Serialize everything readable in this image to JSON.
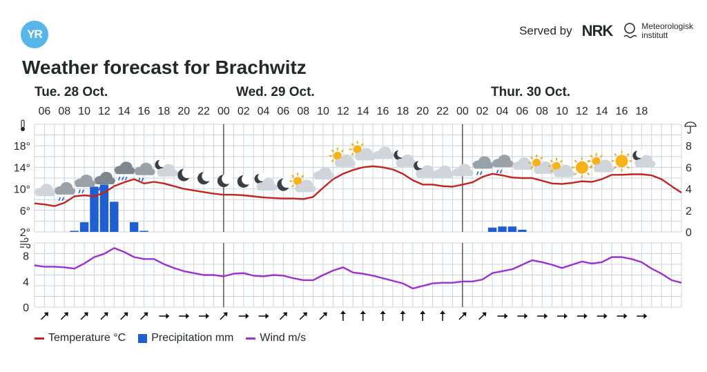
{
  "brand": {
    "logo_text": "YR",
    "served_by": "Served by",
    "nrk": "NRK",
    "met_line1": "Meteorologisk",
    "met_line2": "institutt"
  },
  "title": "Weather forecast for Brachwitz",
  "days": [
    "Tue. 28 Oct.",
    "Wed. 29 Oct.",
    "Thur. 30 Oct."
  ],
  "legend": {
    "temperature": "Temperature °C",
    "precipitation": "Precipitation mm",
    "wind": "Wind m/s"
  },
  "colors": {
    "temperature": "#c4221d",
    "precipitation": "#1f5fd1",
    "wind": "#9b30d0",
    "grid": "#c7d3db",
    "day_divider": "#333333"
  },
  "chart_data": [
    {
      "type": "line",
      "title": "Weather forecast for Brachwitz",
      "x_hours": [
        5,
        6,
        7,
        8,
        9,
        10,
        11,
        12,
        13,
        14,
        15,
        16,
        17,
        18,
        19,
        20,
        21,
        22,
        23,
        24,
        25,
        26,
        27,
        28,
        29,
        30,
        31,
        32,
        33,
        34,
        35,
        36,
        37,
        38,
        39,
        40,
        41,
        42,
        43,
        44,
        45,
        46,
        47,
        48,
        49,
        50,
        51,
        52,
        53,
        54,
        55,
        56,
        57,
        58,
        59,
        60,
        61,
        62,
        63,
        64,
        65,
        66,
        67,
        68,
        69,
        70
      ],
      "x_tick_labels": [
        "06",
        "08",
        "10",
        "12",
        "14",
        "16",
        "18",
        "20",
        "22",
        "00",
        "02",
        "04",
        "06",
        "08",
        "10",
        "12",
        "14",
        "16",
        "18",
        "20",
        "22",
        "00",
        "02",
        "04",
        "06",
        "08",
        "10",
        "12",
        "14",
        "16",
        "18"
      ],
      "y_left_ticks": [
        "2°",
        "6°",
        "10°",
        "14°",
        "18°"
      ],
      "y_right_ticks": [
        "0",
        "2",
        "4",
        "6",
        "8"
      ],
      "ylim_left": [
        2,
        22
      ],
      "ylim_right": [
        0,
        10
      ],
      "series": [
        {
          "name": "Temperature °C",
          "axis": "left",
          "values": [
            7.3,
            7.1,
            6.8,
            7.4,
            8.6,
            8.8,
            8.6,
            9.3,
            10.5,
            11.2,
            11.8,
            11.0,
            11.3,
            11.0,
            10.5,
            10.0,
            9.7,
            9.4,
            9.1,
            8.9,
            8.9,
            8.8,
            8.6,
            8.4,
            8.3,
            8.2,
            8.2,
            8.1,
            8.5,
            10.2,
            11.8,
            12.8,
            13.5,
            14.0,
            14.2,
            14.0,
            13.6,
            12.8,
            11.6,
            10.8,
            10.8,
            10.5,
            10.4,
            10.8,
            11.2,
            12.2,
            12.8,
            12.5,
            12.1,
            12.0,
            12.0,
            11.5,
            11.0,
            10.9,
            11.1,
            11.4,
            11.3,
            11.8,
            12.6,
            12.6,
            12.7,
            12.7,
            12.5,
            11.8,
            10.5,
            9.3
          ]
        },
        {
          "name": "Precipitation mm",
          "axis": "right",
          "type": "bar",
          "bars": [
            {
              "hour": 9,
              "value": 0.1
            },
            {
              "hour": 10,
              "value": 0.9
            },
            {
              "hour": 11,
              "value": 4.2
            },
            {
              "hour": 12,
              "value": 4.4
            },
            {
              "hour": 13,
              "value": 2.8
            },
            {
              "hour": 15,
              "value": 0.9
            },
            {
              "hour": 16,
              "value": 0.1
            },
            {
              "hour": 51,
              "value": 0.4
            },
            {
              "hour": 52,
              "value": 0.5
            },
            {
              "hour": 53,
              "value": 0.5
            },
            {
              "hour": 54,
              "value": 0.2
            }
          ]
        }
      ]
    },
    {
      "type": "line",
      "y_ticks": [
        "0",
        "4",
        "8"
      ],
      "ylim": [
        0,
        10
      ],
      "series": [
        {
          "name": "Wind m/s",
          "values": [
            6.5,
            6.3,
            6.3,
            6.2,
            6.0,
            6.8,
            7.8,
            8.3,
            9.2,
            8.6,
            7.8,
            7.5,
            7.5,
            6.7,
            6.1,
            5.6,
            5.3,
            5.0,
            5.0,
            4.8,
            5.2,
            5.3,
            4.9,
            4.8,
            5.0,
            4.9,
            4.5,
            4.2,
            4.2,
            5.0,
            5.7,
            6.2,
            5.4,
            5.2,
            4.9,
            4.5,
            4.1,
            3.7,
            2.9,
            3.3,
            3.7,
            3.8,
            3.8,
            4.0,
            4.0,
            4.3,
            5.3,
            5.6,
            5.9,
            6.6,
            7.3,
            7.0,
            6.6,
            6.1,
            6.6,
            7.1,
            6.8,
            7.0,
            7.8,
            7.8,
            7.5,
            7.0,
            6.0,
            5.2,
            4.2,
            3.8
          ]
        }
      ]
    }
  ],
  "weather_icons": [
    "cloud",
    "cloud-rain",
    "cloud-rain",
    "cloud-heavy-rain",
    "cloud-heavy-rain",
    "cloud-rain",
    "moon-cloud",
    "moon",
    "moon",
    "moon",
    "moon",
    "moon-cloud",
    "moon",
    "sun-cloud",
    "cloud",
    "sun-cloud",
    "sun-cloud",
    "cloud",
    "moon-cloud",
    "moon-cloud",
    "cloud",
    "cloud",
    "cloud-rain",
    "cloud-rain",
    "cloud",
    "sun-cloud",
    "sun-cloud",
    "sun",
    "sun-cloud",
    "sun",
    "moon-cloud"
  ],
  "wind_directions": [
    "sw",
    "sw",
    "sw",
    "sw",
    "sw",
    "sw",
    "w",
    "w",
    "w",
    "sw",
    "w",
    "w",
    "sw",
    "sw",
    "sw",
    "s",
    "s",
    "s",
    "s",
    "s",
    "s",
    "sw",
    "sw",
    "w",
    "w",
    "w",
    "w",
    "w",
    "w",
    "w",
    "w"
  ]
}
